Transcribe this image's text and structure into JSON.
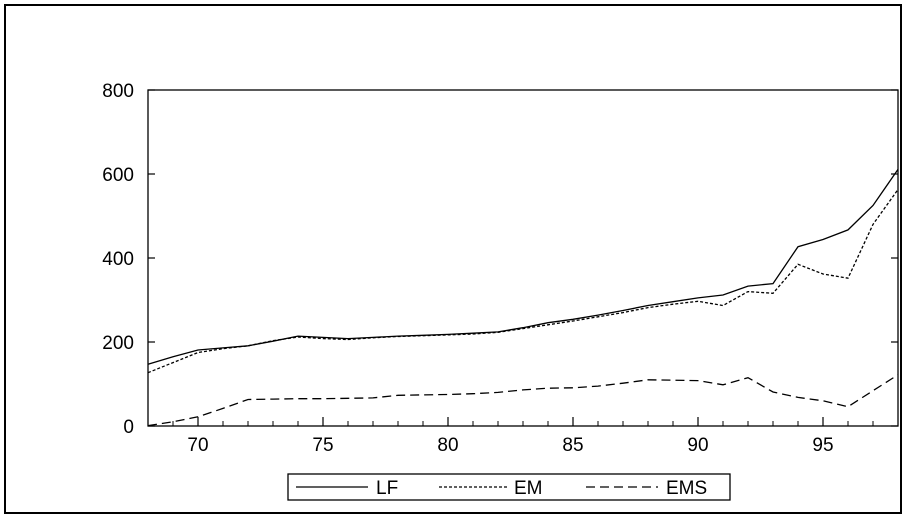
{
  "chart_data": {
    "type": "line",
    "title": "",
    "xlabel": "",
    "ylabel": "",
    "xlim": [
      68,
      98
    ],
    "ylim": [
      0,
      800
    ],
    "x_ticks": [
      70,
      75,
      80,
      85,
      90,
      95
    ],
    "y_ticks": [
      0,
      200,
      400,
      600,
      800
    ],
    "grid": false,
    "legend_position": "bottom",
    "x": [
      68,
      69,
      70,
      71,
      72,
      73,
      74,
      75,
      76,
      77,
      78,
      79,
      80,
      81,
      82,
      83,
      84,
      85,
      86,
      87,
      88,
      89,
      90,
      91,
      92,
      93,
      94,
      95,
      96,
      97,
      98
    ],
    "series": [
      {
        "name": "LF",
        "style": "solid",
        "color": "#000000",
        "values": [
          147,
          165,
          181,
          186,
          191,
          202,
          214,
          211,
          208,
          211,
          214,
          216,
          218,
          221,
          224,
          234,
          246,
          254,
          264,
          275,
          287,
          296,
          305,
          312,
          333,
          339,
          427,
          444,
          467,
          525,
          611
        ]
      },
      {
        "name": "EM",
        "style": "dotted",
        "color": "#000000",
        "values": [
          127,
          151,
          175,
          184,
          191,
          203,
          212,
          208,
          206,
          210,
          213,
          215,
          217,
          219,
          223,
          232,
          241,
          250,
          260,
          270,
          282,
          290,
          297,
          287,
          320,
          316,
          385,
          362,
          352,
          480,
          563
        ]
      },
      {
        "name": "EMS",
        "style": "dashed",
        "color": "#000000",
        "values": [
          1,
          10,
          22,
          42,
          63,
          64,
          65,
          65,
          66,
          67,
          73,
          74,
          75,
          77,
          80,
          86,
          90,
          91,
          95,
          102,
          110,
          109,
          108,
          98,
          115,
          81,
          68,
          60,
          46,
          84,
          122
        ]
      }
    ]
  }
}
